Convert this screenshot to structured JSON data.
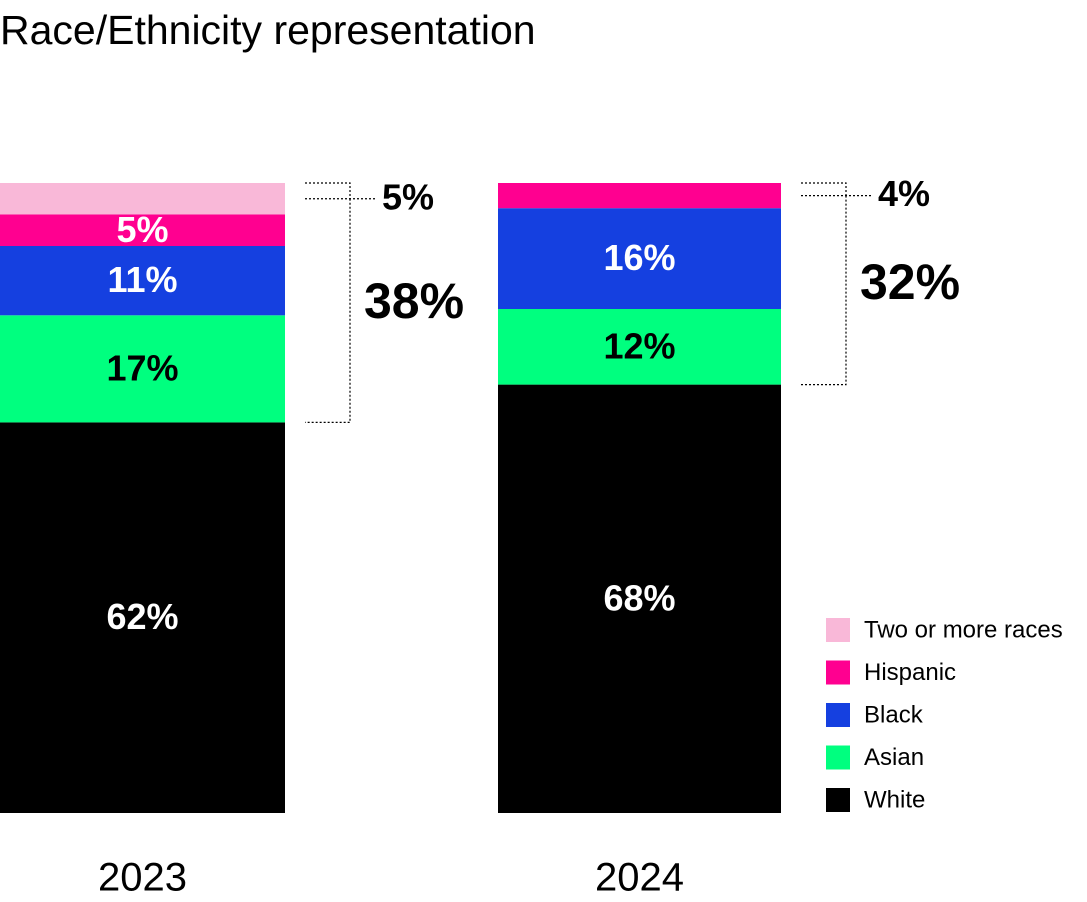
{
  "chart_data": {
    "type": "stacked-bar",
    "title": "Race/Ethnicity representation",
    "categories": [
      "2023",
      "2024"
    ],
    "ylim": [
      0,
      100
    ],
    "series": [
      {
        "name": "White",
        "color": "#000000",
        "label_color": "#ffffff",
        "values": [
          62,
          68
        ],
        "value_labels": [
          "62%",
          "68%"
        ]
      },
      {
        "name": "Asian",
        "color": "#00ff7f",
        "label_color": "#000000",
        "values": [
          17,
          12
        ],
        "value_labels": [
          "17%",
          "12%"
        ]
      },
      {
        "name": "Black",
        "color": "#1540e0",
        "label_color": "#ffffff",
        "values": [
          11,
          16
        ],
        "value_labels": [
          "11%",
          "16%"
        ]
      },
      {
        "name": "Hispanic",
        "color": "#ff0090",
        "label_color": "#ffffff",
        "values": [
          5,
          4
        ],
        "value_labels": [
          "5%",
          "4%"
        ]
      },
      {
        "name": "Two or more races",
        "color": "#f9b8d8",
        "label_color": "#ffffff",
        "values": [
          5,
          null
        ],
        "value_labels": [
          "5%",
          null
        ]
      }
    ],
    "bracket": {
      "values": [
        38,
        32
      ],
      "value_labels": [
        "38%",
        "32%"
      ]
    }
  }
}
